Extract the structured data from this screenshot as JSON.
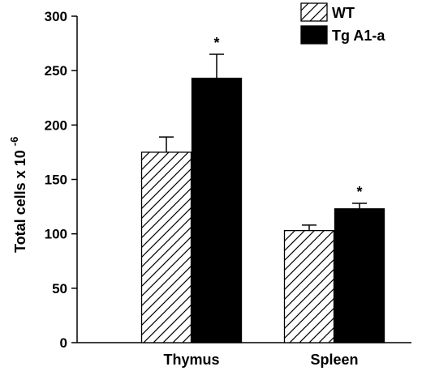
{
  "chart_data": {
    "type": "bar",
    "title": "",
    "xlabel": "",
    "ylabel": "Total cells x 10",
    "ylabel_exponent": "-6",
    "ylim": [
      0,
      300
    ],
    "yticks": [
      0,
      50,
      100,
      150,
      200,
      250,
      300
    ],
    "categories": [
      "Thymus",
      "Spleen"
    ],
    "series": [
      {
        "name": "WT",
        "values": [
          175,
          103
        ],
        "errors": [
          14,
          5
        ],
        "color": "#ffffff",
        "pattern": "diagonal-hatch"
      },
      {
        "name": "Tg A1-a",
        "values": [
          243,
          123
        ],
        "errors": [
          22,
          5
        ],
        "color": "#000000",
        "pattern": "solid"
      }
    ],
    "annotations": [
      {
        "text": "*",
        "category": "Thymus",
        "series": "Tg A1-a"
      },
      {
        "text": "*",
        "category": "Spleen",
        "series": "Tg A1-a"
      }
    ],
    "legend_position": "top-right",
    "grid": false
  }
}
